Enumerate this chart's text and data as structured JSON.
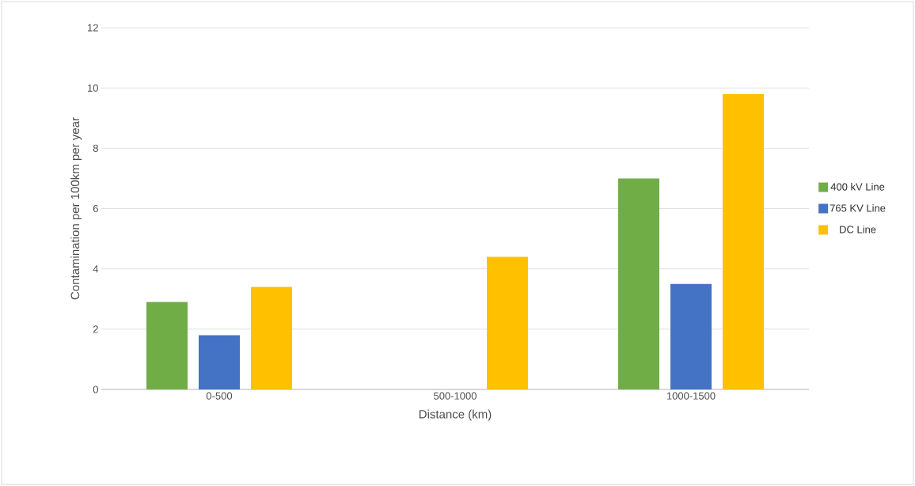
{
  "chart_data": {
    "type": "bar",
    "xlabel": "Distance (km)",
    "ylabel": "Contamination per 100km per year",
    "categories": [
      "0-500",
      "500-1000",
      "1000-1500"
    ],
    "series": [
      {
        "name": "400 kV Line",
        "color": "#70ad47",
        "values": [
          2.9,
          null,
          7.0
        ]
      },
      {
        "name": "765 KV Line",
        "color": "#4472c4",
        "values": [
          1.8,
          null,
          3.5
        ]
      },
      {
        "name": "DC Line",
        "color": "#ffc000",
        "values": [
          3.4,
          4.4,
          9.8
        ]
      }
    ],
    "ylim": [
      0,
      12
    ],
    "yticks": [
      0,
      2,
      4,
      6,
      8,
      10,
      12
    ],
    "grid": "y",
    "legend": "right"
  }
}
